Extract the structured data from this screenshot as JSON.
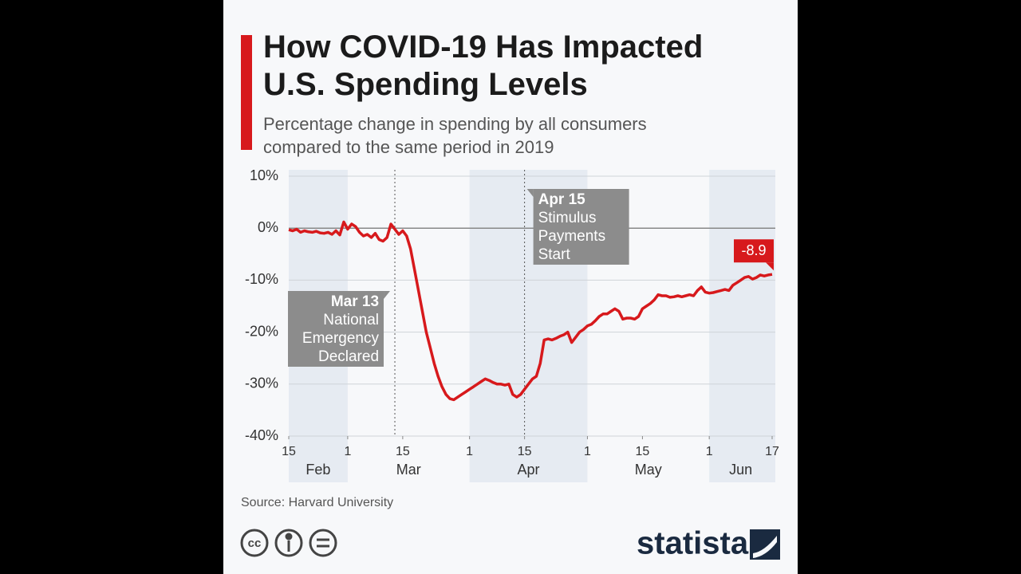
{
  "chart_data": {
    "type": "line",
    "title": "How COVID-19 Has Impacted U.S. Spending Levels",
    "subtitle": "Percentage change in spending by all consumers compared to the same period in 2019",
    "source": "Source: Harvard University",
    "brand": "statista",
    "license": "cc",
    "x": [
      0,
      1,
      2,
      3,
      4,
      5,
      6,
      7,
      8,
      9,
      10,
      11,
      12,
      13,
      14,
      15,
      16,
      17,
      18,
      19,
      20,
      21,
      22,
      23,
      24,
      25,
      26,
      27,
      28,
      29,
      30,
      31,
      32,
      33,
      34,
      35,
      36,
      37,
      38,
      39,
      40,
      41,
      42,
      43,
      44,
      45,
      46,
      47,
      48,
      49,
      50,
      51,
      52,
      53,
      54,
      55,
      56,
      57,
      58,
      59,
      60,
      61,
      62,
      63,
      64,
      65,
      66,
      67,
      68,
      69,
      70,
      71,
      72,
      73,
      74,
      75,
      76,
      77,
      78,
      79,
      80,
      81,
      82,
      83,
      84,
      85,
      86,
      87,
      88,
      89,
      90,
      91,
      92,
      93,
      94,
      95,
      96,
      97,
      98,
      99,
      100,
      101,
      102,
      103,
      104,
      105,
      106,
      107,
      108,
      109,
      110,
      111,
      112,
      113,
      114,
      115,
      116,
      117,
      118,
      119,
      120,
      121,
      122,
      123
    ],
    "series": [
      {
        "color": "#d7191c",
        "values": [
          -0.3,
          -0.5,
          -0.2,
          -0.8,
          -0.5,
          -0.7,
          -0.8,
          -0.6,
          -0.9,
          -1,
          -0.8,
          -1.2,
          -0.5,
          -1.3,
          1.2,
          -0.2,
          0.8,
          0.3,
          -0.8,
          -1.5,
          -1.2,
          -1.8,
          -1,
          -2.2,
          -2.5,
          -1.8,
          0.8,
          -0.2,
          -1.2,
          -0.5,
          -1.5,
          -4,
          -8,
          -12,
          -16,
          -20,
          -23,
          -26,
          -28.5,
          -30.5,
          -32,
          -32.8,
          -33,
          -32.5,
          -32,
          -31.5,
          -31,
          -30.5,
          -30,
          -29.5,
          -29,
          -29.3,
          -29.7,
          -30,
          -30,
          -30.2,
          -30,
          -32,
          -32.5,
          -32,
          -31,
          -30,
          -29,
          -28.5,
          -26,
          -21.5,
          -21.3,
          -21.5,
          -21.2,
          -20.8,
          -20.5,
          -20,
          -22,
          -21,
          -20,
          -19.5,
          -18.8,
          -18.5,
          -17.8,
          -17,
          -16.5,
          -16.5,
          -16,
          -15.5,
          -16,
          -17.5,
          -17.3,
          -17.3,
          -17.5,
          -17,
          -15.5,
          -15,
          -14.5,
          -13.8,
          -12.8,
          -13,
          -13,
          -13.3,
          -13.2,
          -13,
          -13.2,
          -13,
          -12.8,
          -13,
          -12,
          -11.3,
          -12.3,
          -12.5,
          -12.4,
          -12.2,
          -12,
          -11.8,
          -12,
          -11,
          -10.5,
          -10,
          -9.5,
          -9.3,
          -9.8,
          -9.5,
          -9,
          -9.2,
          -9,
          -8.9
        ]
      }
    ],
    "end_label": "-8.9",
    "end_label_color": "#d7191c",
    "xlim": [
      0,
      123
    ],
    "xticks": [
      {
        "value": 0,
        "label": "15"
      },
      {
        "value": 15,
        "label": "1"
      },
      {
        "value": 29,
        "label": "15"
      },
      {
        "value": 46,
        "label": "1"
      },
      {
        "value": 60,
        "label": "15"
      },
      {
        "value": 76,
        "label": "1"
      },
      {
        "value": 90,
        "label": "15"
      },
      {
        "value": 107,
        "label": "1"
      },
      {
        "value": 123,
        "label": "17"
      }
    ],
    "months": [
      {
        "label": "Feb",
        "start": 0,
        "end": 15
      },
      {
        "label": "Mar",
        "start": 15,
        "end": 46
      },
      {
        "label": "Apr",
        "start": 46,
        "end": 76
      },
      {
        "label": "May",
        "start": 76,
        "end": 107
      },
      {
        "label": "Jun",
        "start": 107,
        "end": 123
      }
    ],
    "shade_alternate": true,
    "ylim": [
      -40,
      10
    ],
    "yticks": [
      {
        "value": 10,
        "label": "10%"
      },
      {
        "value": 0,
        "label": "0%"
      },
      {
        "value": -10,
        "label": "-10%"
      },
      {
        "value": -20,
        "label": "-20%"
      },
      {
        "value": -30,
        "label": "-30%"
      },
      {
        "value": -40,
        "label": "-40%"
      }
    ],
    "grid": true,
    "annotations": [
      {
        "x": 27,
        "heading": "Mar 13",
        "lines": [
          "National",
          "Emergency",
          "Declared"
        ],
        "side": "left"
      },
      {
        "x": 60,
        "heading": "Apr 15",
        "lines": [
          "Stimulus",
          "Payments",
          "Start"
        ],
        "side": "right"
      }
    ]
  }
}
